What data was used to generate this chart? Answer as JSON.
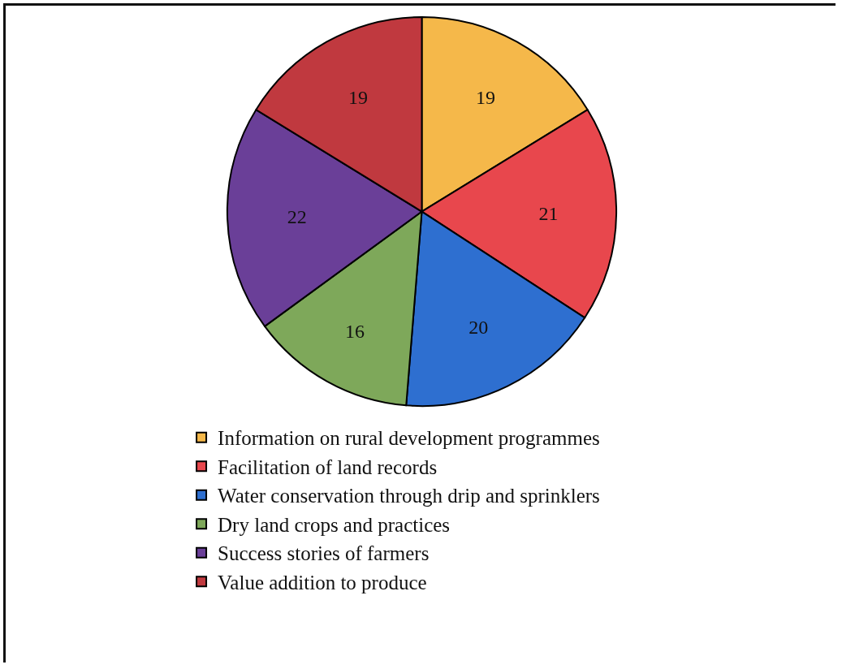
{
  "chart_data": {
    "type": "pie",
    "categories": [
      "Information on rural development programmes",
      "Facilitation of land records",
      "Water conservation through drip and sprinklers",
      "Dry land crops and practices",
      "Success stories of farmers",
      "Value addition to produce"
    ],
    "values": [
      19,
      21,
      20,
      16,
      22,
      19
    ],
    "colors": [
      "#f5b84a",
      "#e8474d",
      "#2e6fd0",
      "#7ea85a",
      "#6a3f98",
      "#c0393f"
    ],
    "data_labels": true,
    "legend": "bottom"
  }
}
